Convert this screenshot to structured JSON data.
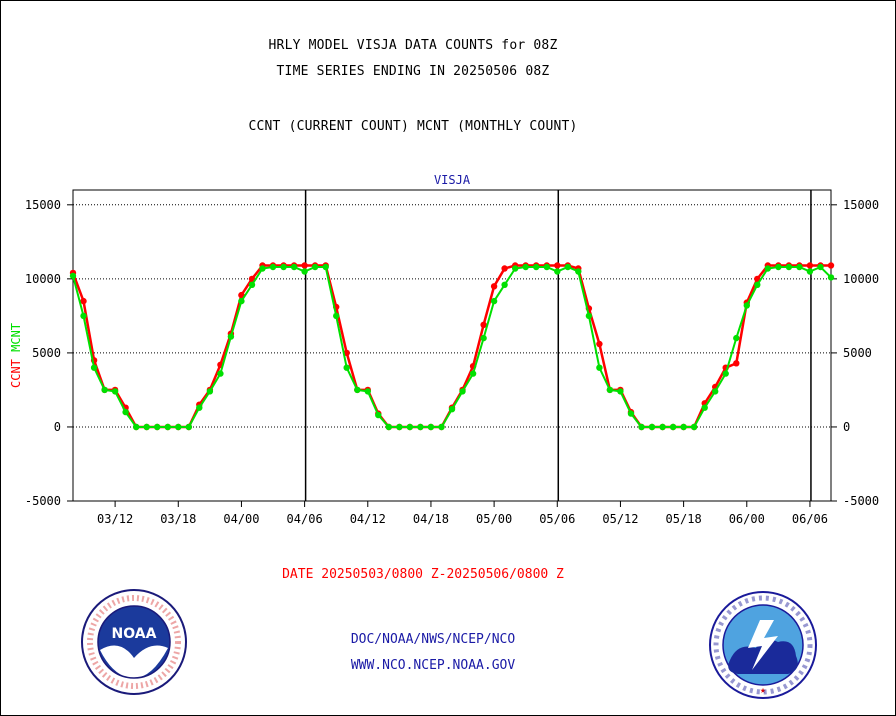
{
  "title_line1": "HRLY MODEL VISJA DATA COUNTS for 08Z",
  "title_line2": "TIME SERIES ENDING IN 20250506 08Z",
  "legend_line": "CCNT (CURRENT COUNT) MCNT (MONTHLY COUNT)",
  "panel_label": "VISJA",
  "ylabel_ccnt": "CCNT",
  "ylabel_mcnt": "MCNT",
  "date_range": "DATE 20250503/0800 Z-20250506/0800 Z",
  "footer_line1": "DOC/NOAA/NWS/NCEP/NCO",
  "footer_line2": "WWW.NCO.NCEP.NOAA.GOV",
  "logo_left": "NOAA",
  "logo_left_ring": "NATIONAL OCEANIC AND ATMOSPHERIC ADMINISTRATION · U.S. DEPARTMENT OF COMMERCE",
  "logo_right_ring": "NATIONAL WEATHER SERVICE",
  "colors": {
    "ccnt": "#ff0000",
    "mcnt": "#00e000",
    "footer": "#1a1aa6",
    "title": "#000000",
    "panel_label": "#1a1aa6"
  },
  "chart_data": {
    "type": "line",
    "ylim": [
      -5000,
      16000
    ],
    "yticks": [
      15000,
      10000,
      5000,
      0,
      -5000
    ],
    "ytick_labels": [
      "15000",
      "10000",
      "5000",
      "0",
      "-5000"
    ],
    "xtick_labels": [
      "03/12",
      "03/18",
      "04/00",
      "04/06",
      "04/12",
      "04/18",
      "05/00",
      "05/06",
      "05/12",
      "05/18",
      "06/00",
      "06/06"
    ],
    "day_boundaries": [
      "04/06",
      "05/06",
      "06/06"
    ],
    "grid": "horizontal dotted",
    "series": [
      {
        "name": "CCNT",
        "color": "#ff0000",
        "points": [
          [
            "03/08",
            10400
          ],
          [
            "03/09",
            8500
          ],
          [
            "03/10",
            4500
          ],
          [
            "03/11",
            2500
          ],
          [
            "03/12",
            2500
          ],
          [
            "03/13",
            1300
          ],
          [
            "03/14",
            0
          ],
          [
            "03/15",
            0
          ],
          [
            "03/16",
            0
          ],
          [
            "03/17",
            0
          ],
          [
            "03/18",
            0
          ],
          [
            "03/19",
            0
          ],
          [
            "03/20",
            1500
          ],
          [
            "03/21",
            2500
          ],
          [
            "03/22",
            4200
          ],
          [
            "03/23",
            6300
          ],
          [
            "03/24",
            8900
          ],
          [
            "04/01",
            10000
          ],
          [
            "04/02",
            10900
          ],
          [
            "04/03",
            10900
          ],
          [
            "04/04",
            10900
          ],
          [
            "04/05",
            10900
          ],
          [
            "04/06",
            10900
          ],
          [
            "04/07",
            10900
          ],
          [
            "04/08",
            10900
          ],
          [
            "04/09",
            8100
          ],
          [
            "04/10",
            5000
          ],
          [
            "04/11",
            2500
          ],
          [
            "04/12",
            2500
          ],
          [
            "04/13",
            900
          ],
          [
            "04/14",
            0
          ],
          [
            "04/15",
            0
          ],
          [
            "04/16",
            0
          ],
          [
            "04/17",
            0
          ],
          [
            "04/18",
            0
          ],
          [
            "04/19",
            0
          ],
          [
            "04/20",
            1300
          ],
          [
            "04/21",
            2500
          ],
          [
            "04/22",
            4100
          ],
          [
            "04/23",
            6900
          ],
          [
            "04/24",
            9500
          ],
          [
            "05/01",
            10700
          ],
          [
            "05/02",
            10900
          ],
          [
            "05/03",
            10900
          ],
          [
            "05/04",
            10900
          ],
          [
            "05/05",
            10900
          ],
          [
            "05/06",
            10900
          ],
          [
            "05/07",
            10900
          ],
          [
            "05/08",
            10700
          ],
          [
            "05/09",
            8000
          ],
          [
            "05/10",
            5600
          ],
          [
            "05/11",
            2500
          ],
          [
            "05/12",
            2500
          ],
          [
            "05/13",
            1000
          ],
          [
            "05/14",
            0
          ],
          [
            "05/15",
            0
          ],
          [
            "05/16",
            0
          ],
          [
            "05/17",
            0
          ],
          [
            "05/18",
            0
          ],
          [
            "05/19",
            0
          ],
          [
            "05/20",
            1600
          ],
          [
            "05/21",
            2700
          ],
          [
            "05/22",
            4000
          ],
          [
            "05/23",
            4300
          ],
          [
            "05/24",
            8400
          ],
          [
            "06/01",
            10000
          ],
          [
            "06/02",
            10900
          ],
          [
            "06/03",
            10900
          ],
          [
            "06/04",
            10900
          ],
          [
            "06/05",
            10900
          ],
          [
            "06/06",
            10900
          ],
          [
            "06/07",
            10900
          ],
          [
            "06/08",
            10900
          ]
        ]
      },
      {
        "name": "MCNT",
        "color": "#00e000",
        "points": [
          [
            "03/08",
            10200
          ],
          [
            "03/09",
            7500
          ],
          [
            "03/10",
            4000
          ],
          [
            "03/11",
            2500
          ],
          [
            "03/12",
            2400
          ],
          [
            "03/13",
            1000
          ],
          [
            "03/14",
            0
          ],
          [
            "03/15",
            0
          ],
          [
            "03/16",
            0
          ],
          [
            "03/17",
            0
          ],
          [
            "03/18",
            0
          ],
          [
            "03/19",
            0
          ],
          [
            "03/20",
            1300
          ],
          [
            "03/21",
            2400
          ],
          [
            "03/22",
            3600
          ],
          [
            "03/23",
            6100
          ],
          [
            "03/24",
            8500
          ],
          [
            "04/01",
            9600
          ],
          [
            "04/02",
            10700
          ],
          [
            "04/03",
            10800
          ],
          [
            "04/04",
            10800
          ],
          [
            "04/05",
            10800
          ],
          [
            "04/06",
            10500
          ],
          [
            "04/07",
            10800
          ],
          [
            "04/08",
            10800
          ],
          [
            "04/09",
            7500
          ],
          [
            "04/10",
            4000
          ],
          [
            "04/11",
            2500
          ],
          [
            "04/12",
            2400
          ],
          [
            "04/13",
            800
          ],
          [
            "04/14",
            0
          ],
          [
            "04/15",
            0
          ],
          [
            "04/16",
            0
          ],
          [
            "04/17",
            0
          ],
          [
            "04/18",
            0
          ],
          [
            "04/19",
            0
          ],
          [
            "04/20",
            1200
          ],
          [
            "04/21",
            2400
          ],
          [
            "04/22",
            3600
          ],
          [
            "04/23",
            6000
          ],
          [
            "04/24",
            8500
          ],
          [
            "05/01",
            9600
          ],
          [
            "05/02",
            10700
          ],
          [
            "05/03",
            10800
          ],
          [
            "05/04",
            10800
          ],
          [
            "05/05",
            10800
          ],
          [
            "05/06",
            10500
          ],
          [
            "05/07",
            10800
          ],
          [
            "05/08",
            10500
          ],
          [
            "05/09",
            7500
          ],
          [
            "05/10",
            4000
          ],
          [
            "05/11",
            2500
          ],
          [
            "05/12",
            2400
          ],
          [
            "05/13",
            900
          ],
          [
            "05/14",
            0
          ],
          [
            "05/15",
            0
          ],
          [
            "05/16",
            0
          ],
          [
            "05/17",
            0
          ],
          [
            "05/18",
            0
          ],
          [
            "05/19",
            0
          ],
          [
            "05/20",
            1300
          ],
          [
            "05/21",
            2400
          ],
          [
            "05/22",
            3600
          ],
          [
            "05/23",
            6000
          ],
          [
            "05/24",
            8200
          ],
          [
            "06/01",
            9600
          ],
          [
            "06/02",
            10700
          ],
          [
            "06/03",
            10800
          ],
          [
            "06/04",
            10800
          ],
          [
            "06/05",
            10800
          ],
          [
            "06/06",
            10500
          ],
          [
            "06/07",
            10800
          ],
          [
            "06/08",
            10100
          ]
        ]
      }
    ]
  }
}
